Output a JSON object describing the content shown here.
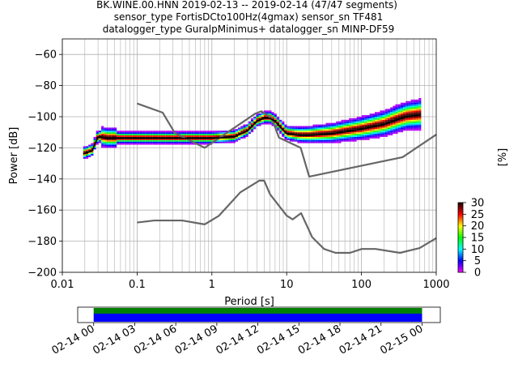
{
  "title_lines": [
    "BK.WINE.00.HNN   2019-02-13 -- 2019-02-14  (47/47 segments)",
    "sensor_type FortisDCto100Hz(4gmax) sensor_sn TF481",
    "datalogger_type GuralpMinimus+ datalogger_sn MINP-DF59"
  ],
  "chart_data": [
    {
      "type": "heatmap",
      "xlabel": "Period [s]",
      "ylabel": "Power [dB]",
      "x_scale": "log",
      "xlim": [
        0.01,
        1000
      ],
      "ylim": [
        -200,
        -50
      ],
      "x_ticks": [
        0.01,
        0.1,
        1,
        10,
        100,
        1000
      ],
      "x_tick_labels": [
        "0.01",
        "0.1",
        "1",
        "10",
        "100",
        "1000"
      ],
      "y_ticks": [
        -200,
        -180,
        -160,
        -140,
        -120,
        -100,
        -80,
        -60
      ],
      "y_tick_labels": [
        "−200",
        "−180",
        "−160",
        "−140",
        "−120",
        "−100",
        "−80",
        "−60"
      ],
      "grid": true,
      "colorbar": {
        "label": "[%]",
        "range": [
          0,
          30
        ],
        "ticks": [
          0,
          5,
          10,
          15,
          20,
          25,
          30
        ],
        "colors": [
          "#ff00ff",
          "#0000ff",
          "#00ffff",
          "#00ff00",
          "#ffff00",
          "#ff0000",
          "#200000"
        ]
      },
      "mean_curve": {
        "color": "#000000",
        "x": [
          0.019,
          0.025,
          0.03,
          0.04,
          0.1,
          0.2,
          0.5,
          1,
          2,
          3,
          4,
          5,
          6,
          7,
          8,
          10,
          15,
          20,
          40,
          100,
          200,
          300,
          400,
          600
        ],
        "y": [
          -124,
          -122,
          -113,
          -114,
          -114,
          -114,
          -114,
          -114,
          -113,
          -109,
          -103,
          -101,
          -101,
          -103,
          -106,
          -111,
          -112,
          -112,
          -111,
          -108,
          -105,
          -102,
          -100,
          -99
        ]
      },
      "noise_model_upper": {
        "color": "#666666",
        "x": [
          0.1,
          0.22,
          0.32,
          0.8,
          3.8,
          4.6,
          6.3,
          7.9,
          15.4,
          20,
          354.8,
          1000
        ],
        "y": [
          -91.5,
          -97.4,
          -110.5,
          -120,
          -98,
          -96.5,
          -101,
          -113.5,
          -120,
          -138.5,
          -126,
          -111.5
        ]
      },
      "noise_model_lower": {
        "color": "#666666",
        "x": [
          0.1,
          0.17,
          0.4,
          0.8,
          1.24,
          2.4,
          4.3,
          5,
          6,
          10,
          12,
          15.6,
          21.9,
          31.6,
          45,
          70,
          101,
          154,
          328,
          600,
          1000
        ],
        "y": [
          -168,
          -166.7,
          -166.7,
          -169.2,
          -163.7,
          -148.6,
          -141.1,
          -141.1,
          -149.9,
          -163.6,
          -166,
          -162,
          -177.4,
          -185,
          -187.5,
          -187.5,
          -185,
          -185,
          -187.5,
          -184.4,
          -178
        ]
      }
    },
    {
      "type": "bar",
      "x_tick_labels": [
        "02-14 00",
        "02-14 03",
        "02-14 06",
        "02-14 09",
        "02-14 12",
        "02-14 15",
        "02-14 18",
        "02-14 21",
        "02-15 00"
      ],
      "xlim": [
        "2019-02-13 22:50",
        "2019-02-15 01:20"
      ],
      "series": [
        {
          "color": "#008000",
          "start": "2019-02-14 00:00",
          "end": "2019-02-15 00:00"
        },
        {
          "color": "#0000ff",
          "start": "2019-02-14 00:00",
          "end": "2019-02-15 00:00"
        }
      ]
    }
  ]
}
